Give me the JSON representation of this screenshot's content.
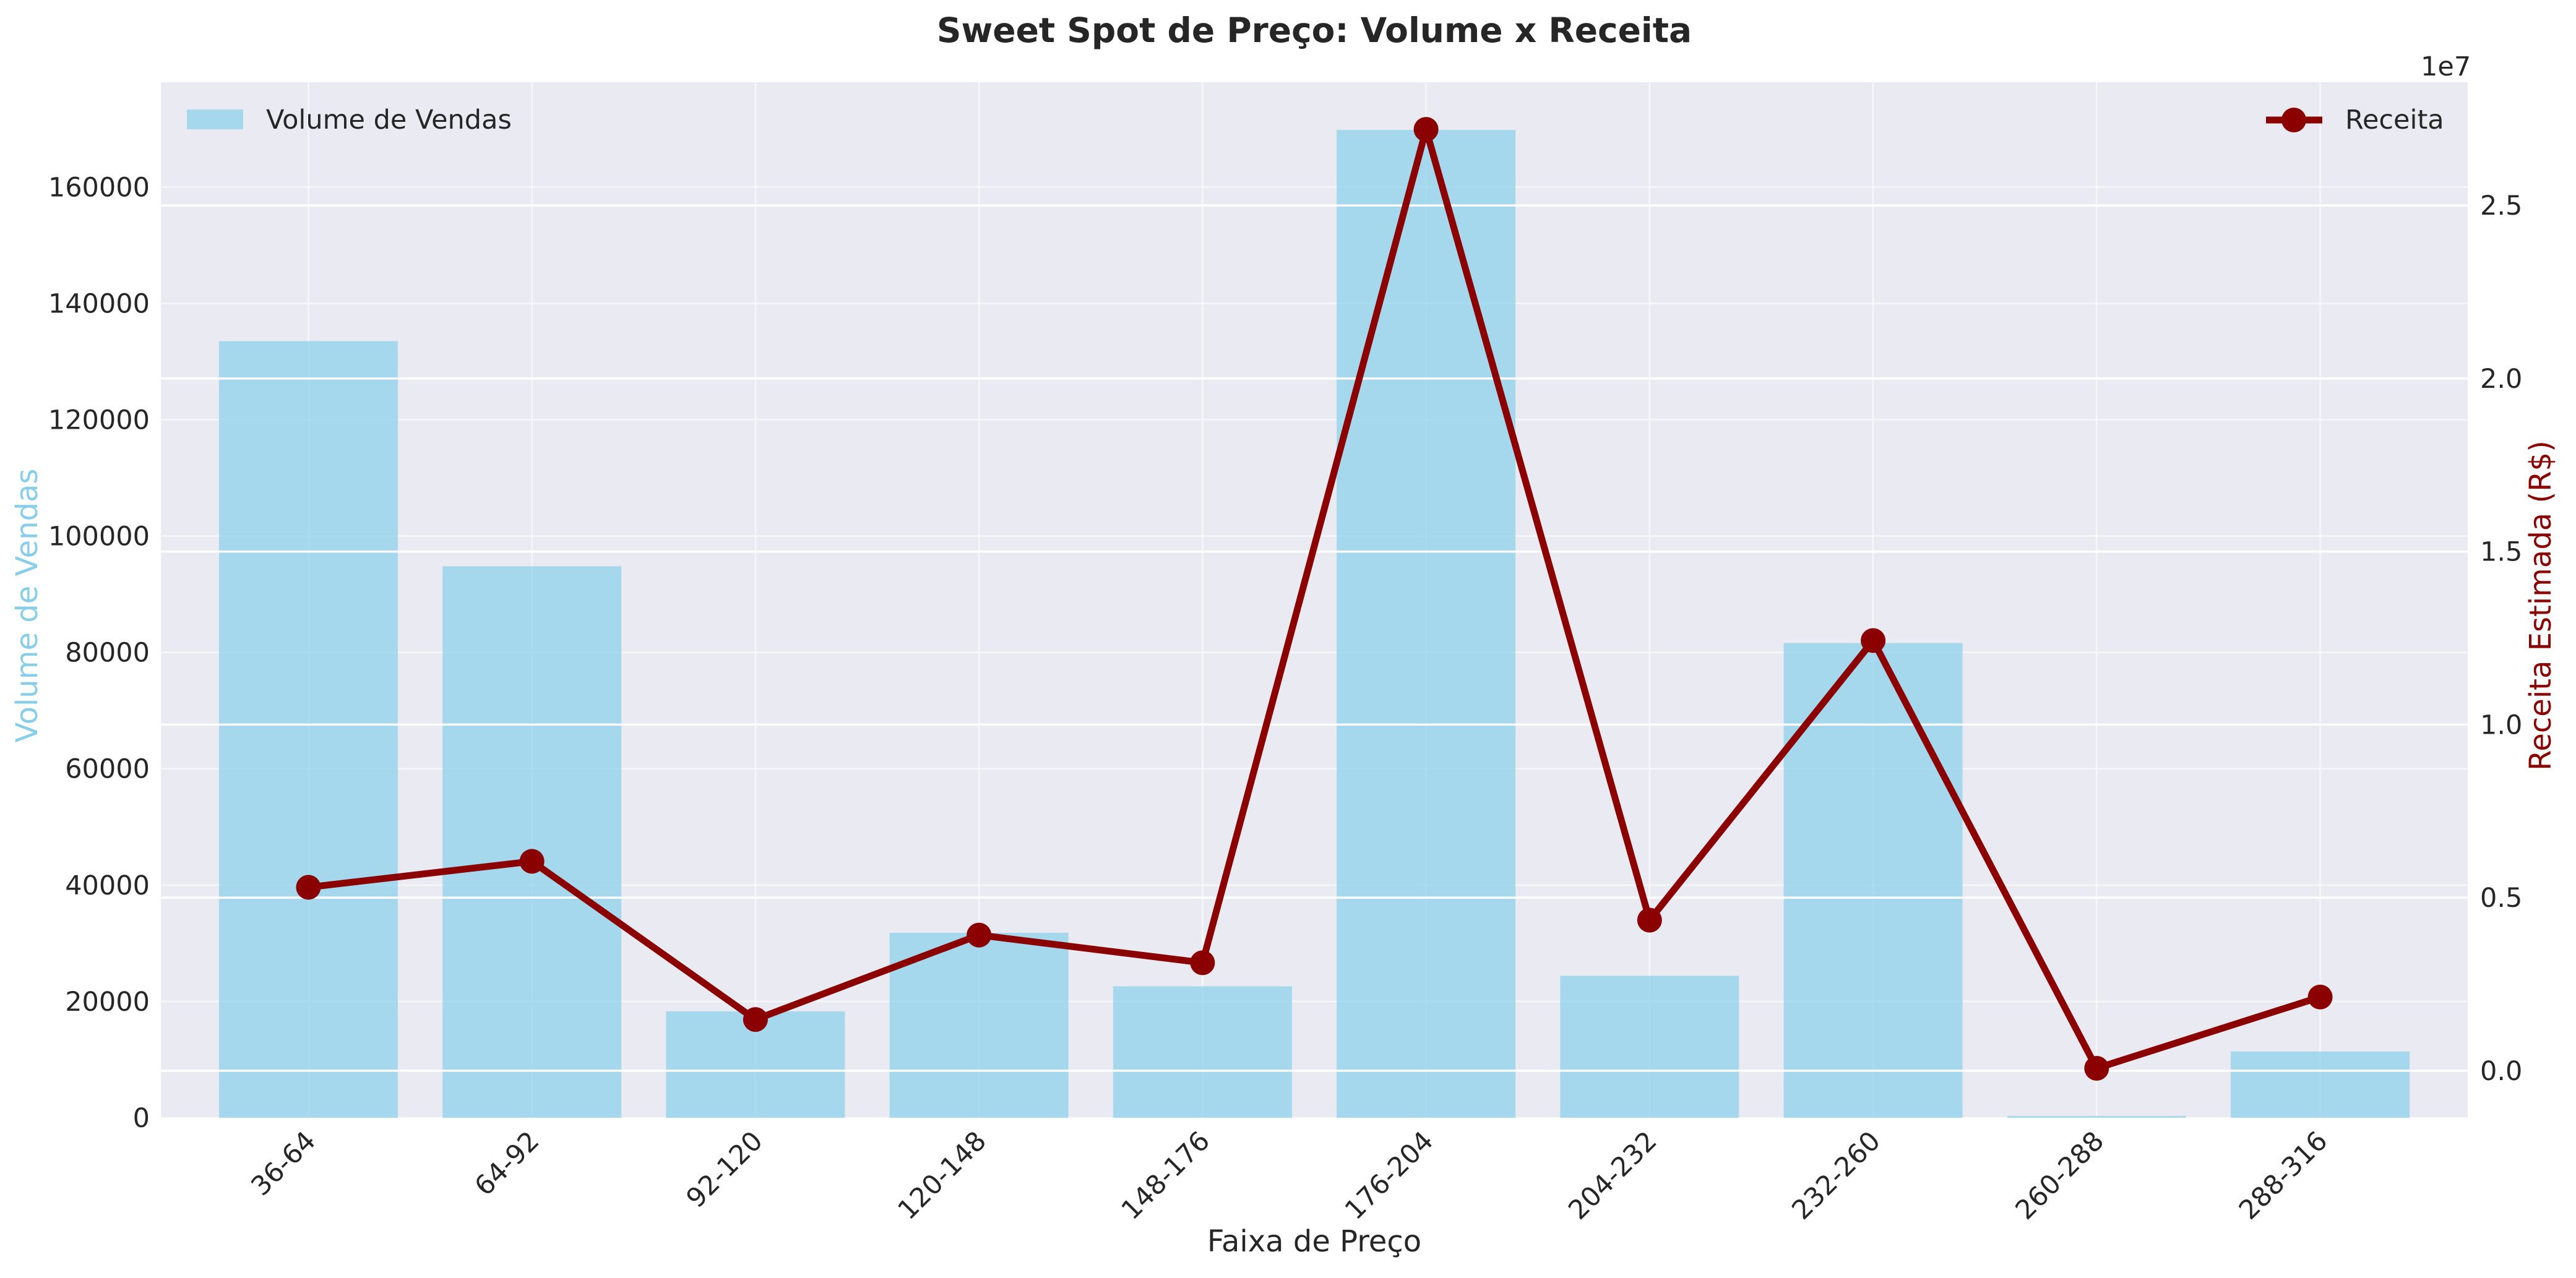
{
  "chart_data": {
    "type": "bar",
    "title": "Sweet Spot de Preço: Volume x Receita",
    "xlabel": "Faixa de Preço",
    "ylabel": "Volume de Vendas",
    "y2label": "Receita Estimada (R$)",
    "y2_offset_text": "1e7",
    "categories": [
      "36-64",
      "64-92",
      "92-120",
      "120-148",
      "148-176",
      "176-204",
      "204-232",
      "232-260",
      "260-288",
      "288-316"
    ],
    "series": [
      {
        "name": "Volume de Vendas",
        "type": "bar",
        "axis": "left",
        "color": "#87ceeb",
        "values": [
          133500,
          94800,
          18300,
          31800,
          22600,
          169800,
          24400,
          81600,
          300,
          11400
        ]
      },
      {
        "name": "Receita",
        "type": "line",
        "axis": "right",
        "color": "#8b0000",
        "values": [
          5300000,
          6050000,
          1480000,
          3920000,
          3120000,
          27200000,
          4350000,
          12430000,
          70000,
          2130000
        ]
      }
    ],
    "y_ticks": [
      0,
      20000,
      40000,
      60000,
      80000,
      100000,
      120000,
      140000,
      160000
    ],
    "y_tick_labels": [
      "0",
      "20000",
      "40000",
      "60000",
      "80000",
      "100000",
      "120000",
      "140000",
      "160000"
    ],
    "ylim": [
      0,
      178000
    ],
    "y2_ticks": [
      0,
      5000000,
      10000000,
      15000000,
      20000000,
      25000000
    ],
    "y2_tick_labels": [
      "0.0",
      "0.5",
      "1.0",
      "1.5",
      "2.0",
      "2.5"
    ],
    "y2lim": [
      -1360000,
      28560000
    ],
    "grid": true,
    "legend_left_placement": "top-left",
    "legend_right_placement": "top-right",
    "colors": {
      "plot_background": "#eaeaf2",
      "grid": "#ffffff",
      "bar": "#87ceeb",
      "line": "#8b0000",
      "left_axis_label": "#87ceeb",
      "right_axis_label": "#8b0000",
      "text": "#262626"
    }
  }
}
